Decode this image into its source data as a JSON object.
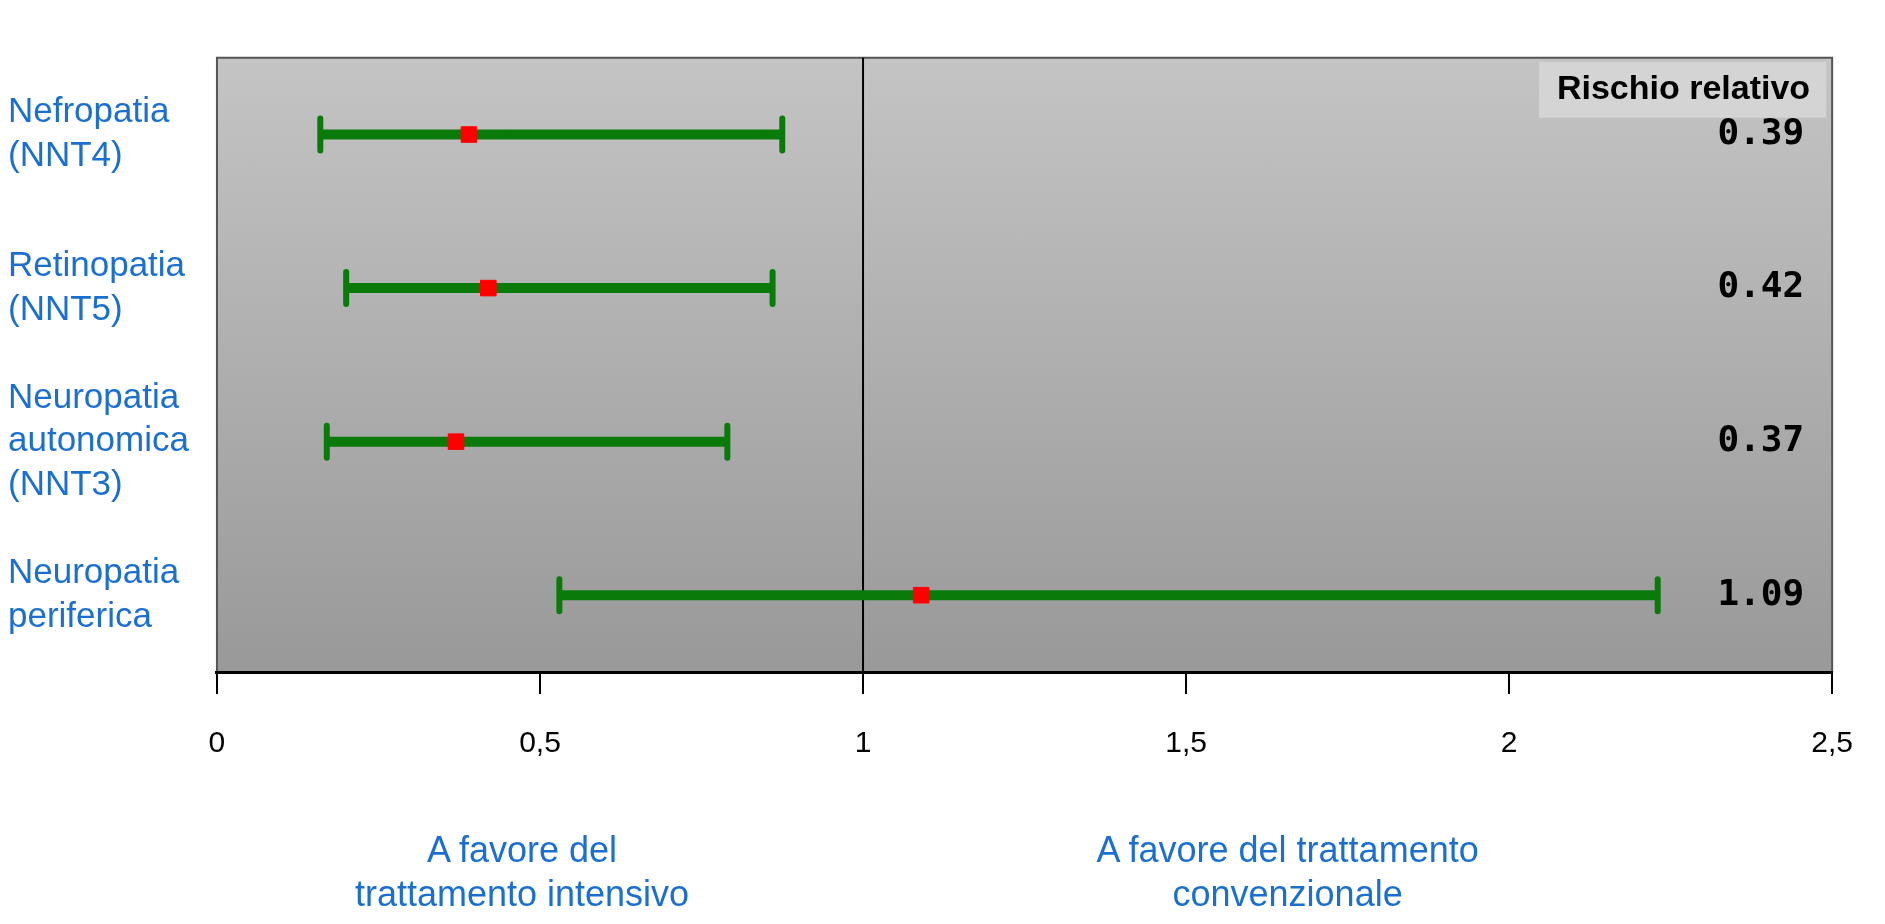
{
  "chart_data": {
    "type": "scatter",
    "orientation": "horizontal",
    "categories": [
      "Nefropatia (NNT4)",
      "Retinopatia (NNT5)",
      "Neuropatia autonomica (NNT3)",
      "Neuropatia periferica"
    ],
    "values": [
      0.39,
      0.42,
      0.37,
      1.09
    ],
    "errors": [
      [
        0.16,
        0.875
      ],
      [
        0.2,
        0.86
      ],
      [
        0.17,
        0.79
      ],
      [
        0.53,
        2.23
      ]
    ],
    "color": "#ff0000",
    "marker": "square",
    "xlim": [
      0,
      2.5
    ],
    "xticks": [
      0,
      {
        "value": 0.5,
        "label": "0,5"
      },
      1,
      {
        "value": 1.5,
        "label": "1,5"
      },
      2,
      {
        "value": 2.5,
        "label": "2,5"
      }
    ],
    "ref_lines": [
      {
        "axis": "x",
        "value": 1,
        "color": "#000000"
      }
    ],
    "annotations": [
      "Rischio relativo",
      "A favore del trattamento intensivo",
      "A favore del trattamento convenzionale",
      "0.39",
      "0.42",
      "0.37",
      "1.09"
    ],
    "grid": false,
    "legend": false
  }
}
